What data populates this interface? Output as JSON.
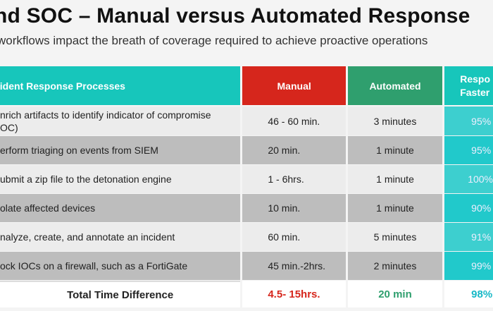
{
  "title": "nd SOC – Manual versus Automated Response",
  "subtitle": "workflows impact the breath of coverage required to achieve proactive operations",
  "table": {
    "headers": {
      "process": "cident Response Processes",
      "manual": "Manual",
      "automated": "Automated",
      "faster_line1": "Respo",
      "faster_line2": "Faster b"
    },
    "rows": [
      {
        "process_line1": "nrich artifacts to identify indicator of compromise",
        "process_line2": "OC)",
        "manual": "46 - 60 min.",
        "automated": "3 minutes",
        "faster": "95%"
      },
      {
        "process_line1": "erform triaging on events from SIEM",
        "process_line2": "",
        "manual": "20 min.",
        "automated": "1 minute",
        "faster": "95%"
      },
      {
        "process_line1": "ubmit a zip file to the detonation engine",
        "process_line2": "",
        "manual": "1 - 6hrs.",
        "automated": "1 minute",
        "faster": "100%"
      },
      {
        "process_line1": "olate affected devices",
        "process_line2": "",
        "manual": "10 min.",
        "automated": "1 minute",
        "faster": "90%"
      },
      {
        "process_line1": "nalyze, create, and annotate an incident",
        "process_line2": "",
        "manual": "60 min.",
        "automated": "5 minutes",
        "faster": "91%"
      },
      {
        "process_line1": "ock IOCs on a firewall, such as a FortiGate",
        "process_line2": "",
        "manual": "45 min.-2hrs.",
        "automated": "2 minutes",
        "faster": "99%"
      }
    ],
    "total": {
      "label": "Total Time Difference",
      "manual": "4.5- 15hrs.",
      "automated": "20 min",
      "faster": "98%"
    }
  },
  "colors": {
    "teal": "#17c6bb",
    "red": "#d6261c",
    "green": "#2f9f6e"
  }
}
